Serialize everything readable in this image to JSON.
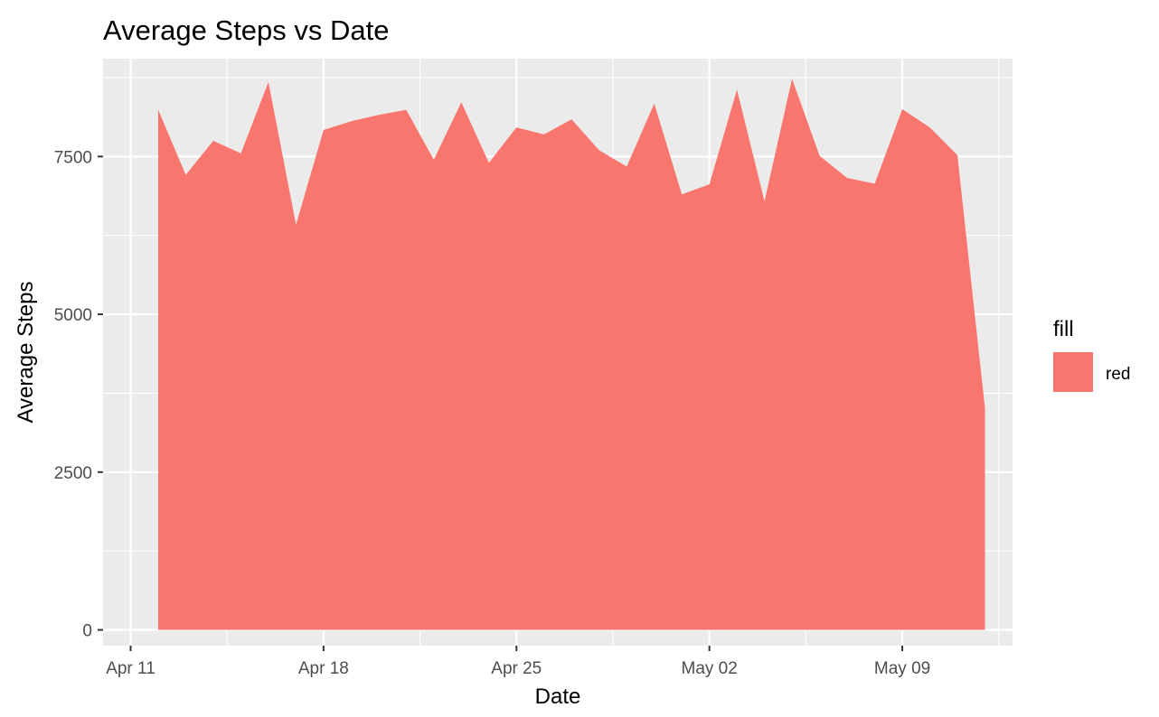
{
  "chart_data": {
    "type": "area",
    "title": "Average Steps vs Date",
    "xlabel": "Date",
    "ylabel": "Average Steps",
    "x": [
      "2016-04-12",
      "2016-04-13",
      "2016-04-14",
      "2016-04-15",
      "2016-04-16",
      "2016-04-17",
      "2016-04-18",
      "2016-04-19",
      "2016-04-20",
      "2016-04-21",
      "2016-04-22",
      "2016-04-23",
      "2016-04-24",
      "2016-04-25",
      "2016-04-26",
      "2016-04-27",
      "2016-04-28",
      "2016-04-29",
      "2016-04-30",
      "2016-05-01",
      "2016-05-02",
      "2016-05-03",
      "2016-05-04",
      "2016-05-05",
      "2016-05-06",
      "2016-05-07",
      "2016-05-08",
      "2016-05-09",
      "2016-05-10",
      "2016-05-11",
      "2016-05-12"
    ],
    "values": [
      8240,
      7210,
      7750,
      7550,
      8680,
      6420,
      7920,
      8060,
      8160,
      8240,
      7450,
      8360,
      7400,
      7960,
      7850,
      8090,
      7600,
      7340,
      8340,
      6900,
      7060,
      8560,
      6790,
      8730,
      7510,
      7160,
      7070,
      8250,
      7960,
      7520,
      3510
    ],
    "xlim": [
      "2016-04-10",
      "2016-05-13"
    ],
    "ylim": [
      -250,
      9050
    ],
    "x_ticks": [
      {
        "date": "2016-04-11",
        "label": "Apr 11"
      },
      {
        "date": "2016-04-18",
        "label": "Apr 18"
      },
      {
        "date": "2016-04-25",
        "label": "Apr 25"
      },
      {
        "date": "2016-05-02",
        "label": "May 02"
      },
      {
        "date": "2016-05-09",
        "label": "May 09"
      }
    ],
    "y_ticks": [
      0,
      2500,
      5000,
      7500
    ],
    "y_tick_labels": [
      "0",
      "2500",
      "5000",
      "7500"
    ],
    "grid": true,
    "legend": {
      "title": "fill",
      "entries": [
        "red"
      ],
      "placement": "right"
    },
    "colors": {
      "fill": "#F8766D",
      "panel": "#EBEBEB",
      "grid": "#FFFFFF",
      "tick": "#333333"
    }
  }
}
